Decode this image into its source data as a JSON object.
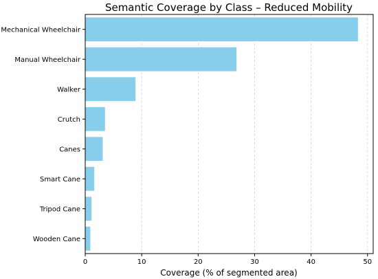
{
  "chart_data": {
    "type": "bar",
    "orientation": "horizontal",
    "title": "Semantic Coverage by Class – Reduced Mobility",
    "xlabel": "Coverage (% of segmented area)",
    "ylabel": "",
    "categories": [
      "Mechanical Wheelchair",
      "Manual Wheelchair",
      "Walker",
      "Crutch",
      "Canes",
      "Smart Cane",
      "Tripod Cane",
      "Wooden Cane"
    ],
    "values": [
      48.3,
      26.8,
      8.9,
      3.5,
      3.1,
      1.6,
      1.1,
      0.9
    ],
    "xlim": [
      0,
      51
    ],
    "xticks": [
      0,
      10,
      20,
      30,
      40,
      50
    ],
    "grid": "x-dashed",
    "bar_color": "#87CEEB"
  }
}
